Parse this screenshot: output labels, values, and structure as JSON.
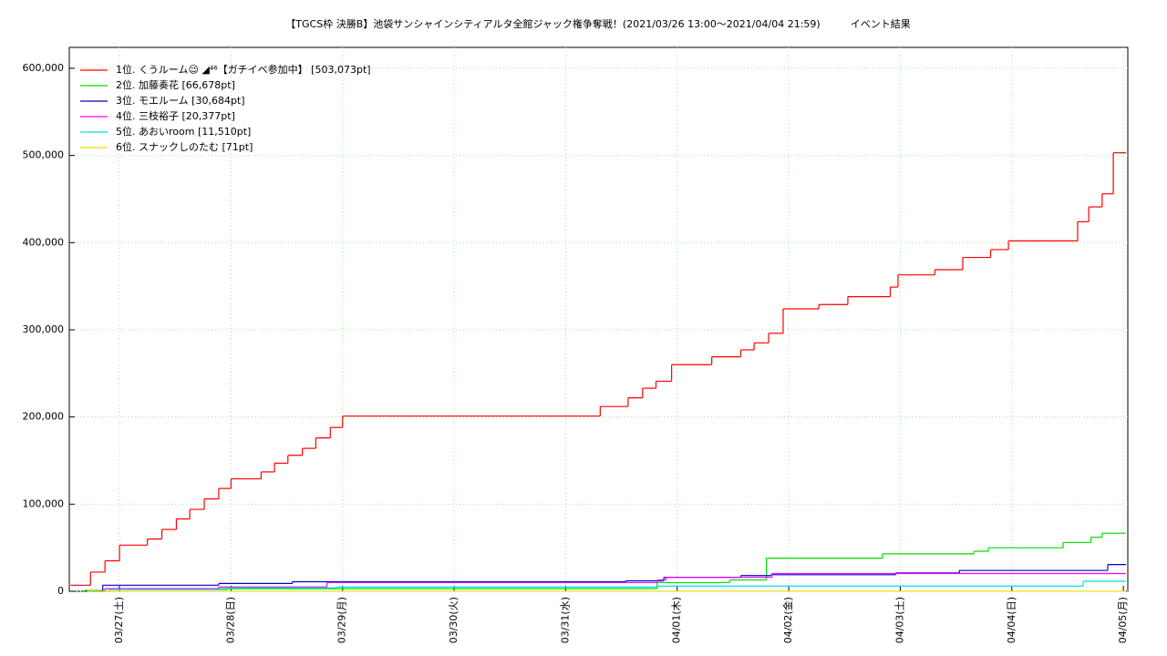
{
  "chart_data": {
    "type": "step",
    "title": "【TGCS枠 決勝B】池袋サンシャインシティアルタ全館ジャック権争奪戦！(2021/03/26 13:00〜2021/04/04 21:59)　　　イベント結果",
    "xlim": [
      0.55,
      10.04
    ],
    "xticks": [
      {
        "value": 1,
        "label": "03/27(土)"
      },
      {
        "value": 2,
        "label": "03/28(日)"
      },
      {
        "value": 3,
        "label": "03/29(月)"
      },
      {
        "value": 4,
        "label": "03/30(火)"
      },
      {
        "value": 5,
        "label": "03/31(水)"
      },
      {
        "value": 6,
        "label": "04/01(木)"
      },
      {
        "value": 7,
        "label": "04/02(金)"
      },
      {
        "value": 8,
        "label": "04/03(土)"
      },
      {
        "value": 9,
        "label": "04/04(日)"
      },
      {
        "value": 10,
        "label": "04/05(月)"
      }
    ],
    "ylim": [
      0,
      624000
    ],
    "yticks": [
      0,
      {
        "value": 100000,
        "label": "100,000"
      },
      {
        "value": 200000,
        "label": "200,000"
      },
      {
        "value": 300000,
        "label": "300,000"
      },
      {
        "value": 400000,
        "label": "400,000"
      },
      {
        "value": 500000,
        "label": "500,000"
      },
      {
        "value": 600000,
        "label": "600,000"
      }
    ],
    "grid": true,
    "legend": "top-left",
    "series": [
      {
        "name": "1位. くうルーム😉 ◢⁴⁶【ガチイベ参加中】 [503,073pt]",
        "color": "#ff0000",
        "x": [
          0.56,
          0.74,
          0.87,
          1.0,
          1.25,
          1.38,
          1.51,
          1.63,
          1.76,
          1.89,
          2.0,
          2.27,
          2.39,
          2.51,
          2.64,
          2.76,
          2.89,
          3.0,
          5.31,
          5.56,
          5.69,
          5.81,
          5.95,
          6.31,
          6.57,
          6.69,
          6.82,
          6.95,
          7.27,
          7.53,
          7.91,
          7.98,
          8.31,
          8.56,
          8.81,
          8.97,
          9.59,
          9.69,
          9.81,
          9.91
        ],
        "values": [
          7000,
          22000,
          35000,
          53000,
          60000,
          71000,
          83000,
          94000,
          106000,
          118000,
          129000,
          137000,
          147000,
          156000,
          164000,
          176000,
          188000,
          201000,
          212000,
          222000,
          233000,
          241000,
          260000,
          269000,
          277000,
          285000,
          296000,
          324000,
          329000,
          338000,
          349000,
          363000,
          369000,
          383000,
          392000,
          402000,
          424000,
          441000,
          456000,
          503073
        ]
      },
      {
        "name": "2位. 加藤奏花 [66,678pt]",
        "color": "#00dd00",
        "x": [
          0.68,
          0.87,
          5.82,
          6.47,
          6.8,
          7.84,
          8.66,
          8.79,
          9.46,
          9.71,
          9.81
        ],
        "values": [
          1000,
          3000,
          10000,
          13000,
          38000,
          43000,
          46000,
          50000,
          56000,
          62000,
          66678
        ]
      },
      {
        "name": "3位. モエルーム [30,684pt]",
        "color": "#0000cc",
        "x": [
          0.75,
          0.85,
          1.89,
          2.55,
          5.54,
          5.88,
          6.57,
          6.84,
          7.96,
          8.53,
          9.86
        ],
        "values": [
          0,
          7000,
          9000,
          11000,
          12000,
          16000,
          18000,
          19000,
          21000,
          24000,
          30684
        ]
      },
      {
        "name": "4位. 三枝裕子 [20,377pt]",
        "color": "#ff00ff",
        "x": [
          0.71,
          0.87,
          1.89,
          2.86,
          5.82,
          5.9,
          6.85
        ],
        "values": [
          0,
          3000,
          5000,
          10000,
          13000,
          16000,
          20377
        ]
      },
      {
        "name": "5位. あおいroom [11,510pt]",
        "color": "#00dddd",
        "x": [
          0.71,
          0.91,
          1.97,
          2.95,
          5.82,
          9.64
        ],
        "values": [
          0,
          2000,
          4000,
          5000,
          6000,
          11510
        ]
      },
      {
        "name": "6位. スナックしのたむ [71pt]",
        "color": "#eedd00",
        "x": [
          0.71,
          1.07
        ],
        "values": [
          0,
          71
        ]
      }
    ]
  }
}
